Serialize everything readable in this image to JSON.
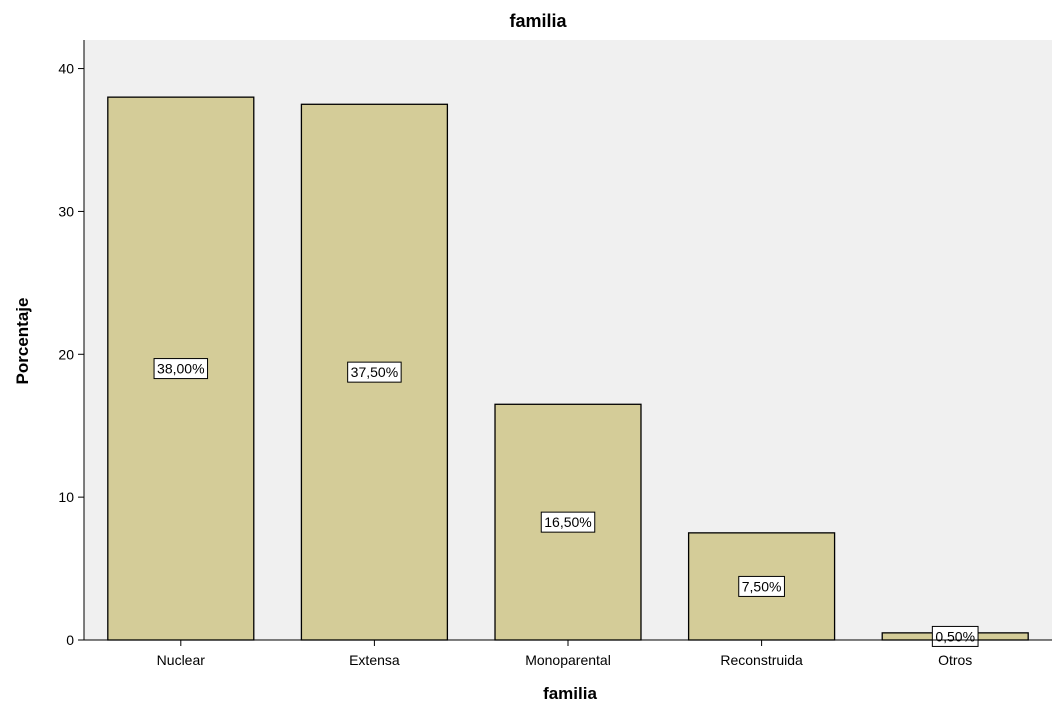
{
  "chart_data": {
    "type": "bar",
    "title": "familia",
    "xlabel": "familia",
    "ylabel": "Porcentaje",
    "categories": [
      "Nuclear",
      "Extensa",
      "Monoparental",
      "Reconstruida",
      "Otros"
    ],
    "values": [
      38.0,
      37.5,
      16.5,
      7.5,
      0.5
    ],
    "data_labels": [
      "38,00%",
      "37,50%",
      "16,50%",
      "7,50%",
      "0,50%"
    ],
    "ylim": [
      0,
      42
    ],
    "yticks": [
      0,
      10,
      20,
      30,
      40
    ],
    "grid": false,
    "legend": "none"
  },
  "colors": {
    "bar_fill": "#d4cc98",
    "plot_background": "#f0f0f0",
    "bar_stroke": "#000000"
  }
}
